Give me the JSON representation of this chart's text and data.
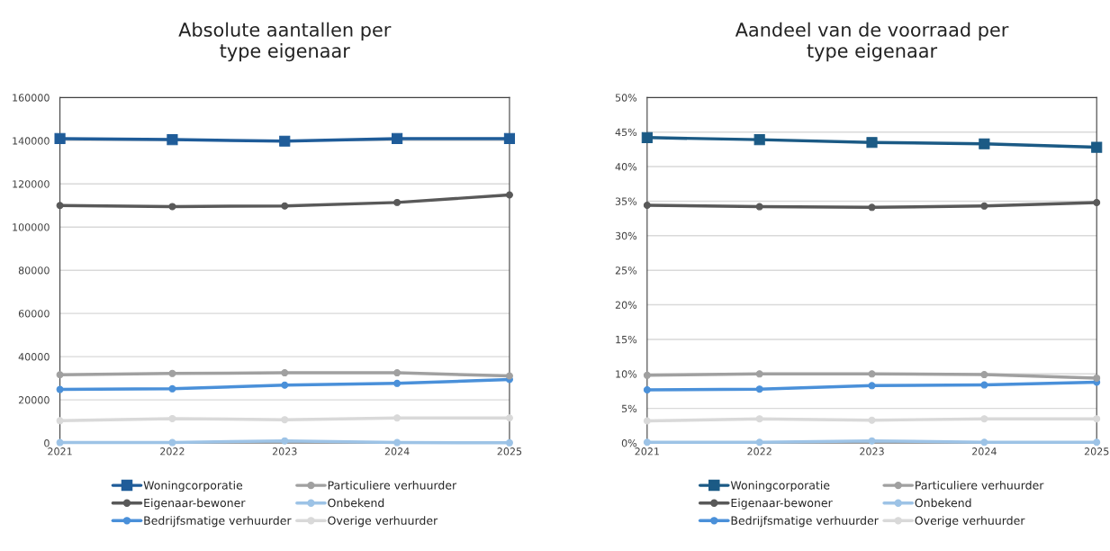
{
  "chart_data": [
    {
      "type": "line",
      "title": "Absolute aantallen per\ntype eigenaar",
      "categories": [
        "2021",
        "2022",
        "2023",
        "2024",
        "2025"
      ],
      "ylim": [
        0,
        160000
      ],
      "yticks": [
        0,
        20000,
        40000,
        60000,
        80000,
        100000,
        120000,
        140000,
        160000
      ],
      "grid": "y",
      "legend": "bottom",
      "series": [
        {
          "name": "Woningcorporatie",
          "color": "#1f5c99",
          "marker": "square",
          "values": [
            141000,
            140500,
            139800,
            141000,
            141000
          ]
        },
        {
          "name": "Eigenaar-bewoner",
          "color": "#595959",
          "marker": "circle",
          "values": [
            110000,
            109500,
            109800,
            111400,
            114900
          ]
        },
        {
          "name": "Bedrijfsmatige verhuurder",
          "color": "#4a90d9",
          "marker": "circle",
          "values": [
            24800,
            25100,
            26800,
            27600,
            29400
          ]
        },
        {
          "name": "Particuliere verhuurder",
          "color": "#a0a0a0",
          "marker": "circle",
          "values": [
            31600,
            32200,
            32500,
            32500,
            31100
          ]
        },
        {
          "name": "Onbekend",
          "color": "#9dc3e6",
          "marker": "circle",
          "values": [
            200,
            200,
            1000,
            200,
            100
          ]
        },
        {
          "name": "Overige verhuurder",
          "color": "#d9d9d9",
          "marker": "circle",
          "values": [
            10300,
            11300,
            10800,
            11600,
            11600
          ]
        }
      ]
    },
    {
      "type": "line",
      "title": "Aandeel van de voorraad per\ntype eigenaar",
      "categories": [
        "2021",
        "2022",
        "2023",
        "2024",
        "2025"
      ],
      "ylim": [
        0,
        50
      ],
      "yticks": [
        {
          "value": 0,
          "label": "0%"
        },
        {
          "value": 5,
          "label": "5%"
        },
        {
          "value": 10,
          "label": "10%"
        },
        {
          "value": 15,
          "label": "15%"
        },
        {
          "value": 20,
          "label": "20%"
        },
        {
          "value": 25,
          "label": "25%"
        },
        {
          "value": 30,
          "label": "30%"
        },
        {
          "value": 35,
          "label": "35%"
        },
        {
          "value": 40,
          "label": "40%"
        },
        {
          "value": 45,
          "label": "45%"
        },
        {
          "value": 50,
          "label": "50%"
        }
      ],
      "grid": "y",
      "legend": "bottom",
      "series": [
        {
          "name": "Woningcorporatie",
          "color": "#1b5a85",
          "marker": "square",
          "values": [
            44.2,
            43.9,
            43.5,
            43.3,
            42.8
          ]
        },
        {
          "name": "Eigenaar-bewoner",
          "color": "#595959",
          "marker": "circle",
          "values": [
            34.4,
            34.2,
            34.1,
            34.3,
            34.8
          ]
        },
        {
          "name": "Bedrijfsmatige verhuurder",
          "color": "#4a90d9",
          "marker": "circle",
          "values": [
            7.7,
            7.8,
            8.3,
            8.4,
            8.8
          ]
        },
        {
          "name": "Particuliere verhuurder",
          "color": "#a0a0a0",
          "marker": "circle",
          "values": [
            9.8,
            10.0,
            10.0,
            9.9,
            9.4
          ]
        },
        {
          "name": "Onbekend",
          "color": "#9dc3e6",
          "marker": "circle",
          "values": [
            0.1,
            0.1,
            0.3,
            0.1,
            0.1
          ]
        },
        {
          "name": "Overige verhuurder",
          "color": "#d9d9d9",
          "marker": "circle",
          "values": [
            3.2,
            3.5,
            3.3,
            3.5,
            3.5
          ]
        }
      ]
    }
  ]
}
